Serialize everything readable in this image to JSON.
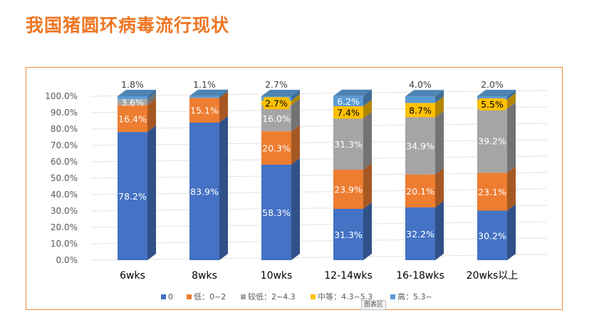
{
  "page": {
    "title": "我国猪圆环病毒流行现状",
    "chart_area_label": "图表区"
  },
  "chart_data": {
    "type": "bar",
    "stacked": true,
    "percent_stacked": true,
    "categories": [
      "6wks",
      "8wks",
      "10wks",
      "12-14wks",
      "16-18wks",
      "20wks以上"
    ],
    "series": [
      {
        "name": "0",
        "color": "#4472c4",
        "values": [
          78.2,
          83.9,
          58.3,
          31.3,
          32.2,
          30.2
        ],
        "labels": [
          "78.2%",
          "83.9%",
          "58.3%",
          "31.3%",
          "32.2%",
          "30.2%"
        ]
      },
      {
        "name": "低：0~2",
        "color": "#ed7d31",
        "values": [
          16.4,
          15.1,
          20.3,
          23.9,
          20.1,
          23.1
        ],
        "labels": [
          "16.4%",
          "15.1%",
          "20.3%",
          "23.9%",
          "20.1%",
          "23.1%"
        ]
      },
      {
        "name": "较低：2~4.3",
        "color": "#a5a5a5",
        "values": [
          3.6,
          0,
          16.0,
          31.3,
          34.9,
          39.2
        ],
        "labels": [
          "3.6%",
          "",
          "16.0%",
          "31.3%",
          "34.9%",
          "39.2%"
        ]
      },
      {
        "name": "中等：4.3~5.3",
        "color": "#ffc000",
        "values": [
          0,
          0,
          2.7,
          7.4,
          8.7,
          5.5
        ],
        "labels": [
          "",
          "",
          "2.7%",
          "7.4%",
          "8.7%",
          "5.5%"
        ]
      },
      {
        "name": "高：5.3~",
        "color": "#5b9bd5",
        "values": [
          1.8,
          1.1,
          2.7,
          6.2,
          4.0,
          2.0
        ],
        "labels": [
          "1.8%",
          "1.1%",
          "2.7%",
          "6.2%",
          "4.0%",
          "2.0%"
        ]
      }
    ],
    "yticks": [
      "0.0%",
      "10.0%",
      "20.0%",
      "30.0%",
      "40.0%",
      "50.0%",
      "60.0%",
      "70.0%",
      "80.0%",
      "90.0%",
      "100.0%"
    ],
    "ylim": [
      0,
      100
    ],
    "grid": true,
    "legend_position": "bottom"
  }
}
